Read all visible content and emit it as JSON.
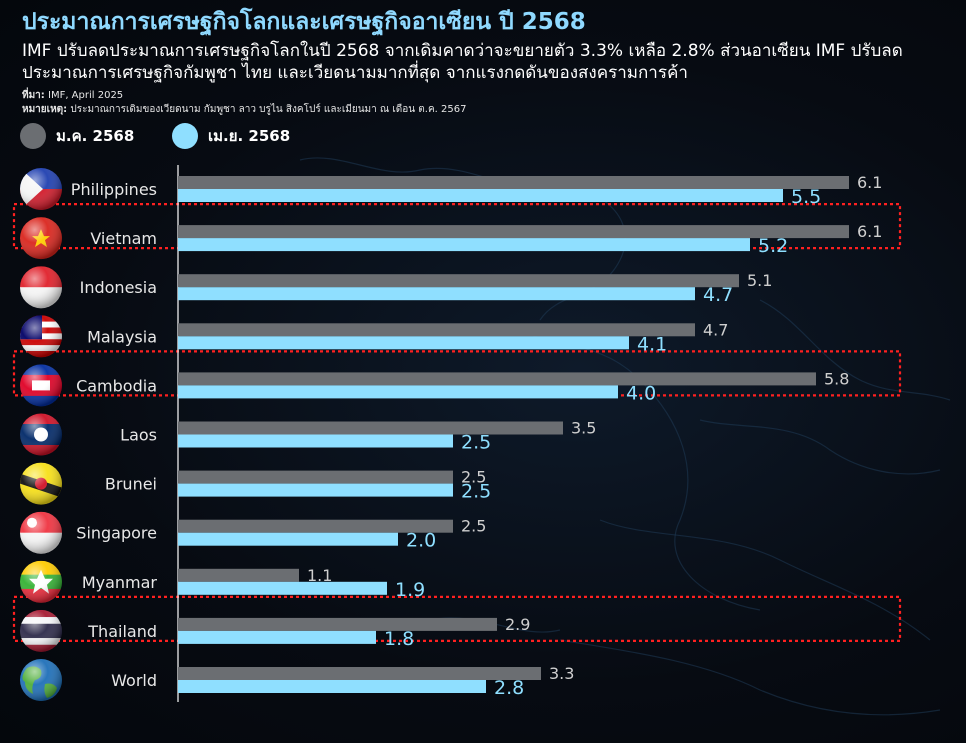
{
  "colors": {
    "jan": "#6b6e72",
    "apr": "#8fdfff",
    "title": "#8fd9ff",
    "highlight": "#ff2020"
  },
  "header": {
    "title": "ประมาณการเศรษฐกิจโลกและเศรษฐกิจอาเซียน ปี 2568",
    "subtitle": "IMF ปรับลดประมาณการเศรษฐกิจโลกในปี 2568 จากเดิมคาดว่าจะขยายตัว 3.3% เหลือ 2.8% ส่วนอาเซียน IMF ปรับลดประมาณการเศรษฐกิจกัมพูชา ไทย และเวียดนามมากที่สุด จากแรงกดดันของสงครามการค้า",
    "source_label": "ที่มา:",
    "source_text": "IMF, April 2025",
    "note_label": "หมายเหตุ:",
    "note_text": "ประมาณการเดิมของเวียดนาม กัมพูชา ลาว บรูไน สิงคโปร์ และเมียนมา ณ เดือน ต.ค. 2567"
  },
  "chart_data": {
    "type": "bar",
    "orientation": "horizontal",
    "categories": [
      "Philippines",
      "Vietnam",
      "Indonesia",
      "Malaysia",
      "Cambodia",
      "Laos",
      "Brunei",
      "Singapore",
      "Myanmar",
      "Thailand",
      "World"
    ],
    "series": [
      {
        "name": "ม.ค. 2568",
        "values": [
          6.1,
          6.1,
          5.1,
          4.7,
          5.8,
          3.5,
          2.5,
          2.5,
          1.1,
          2.9,
          3.3
        ]
      },
      {
        "name": "เม.ย. 2568",
        "values": [
          5.5,
          5.2,
          4.7,
          4.1,
          4.0,
          2.5,
          2.5,
          2.0,
          1.9,
          1.8,
          2.8
        ]
      }
    ],
    "highlighted": [
      "Vietnam",
      "Cambodia",
      "Thailand"
    ],
    "xlim": [
      0,
      6.2
    ],
    "legend_position": "top-left",
    "grid": false
  }
}
